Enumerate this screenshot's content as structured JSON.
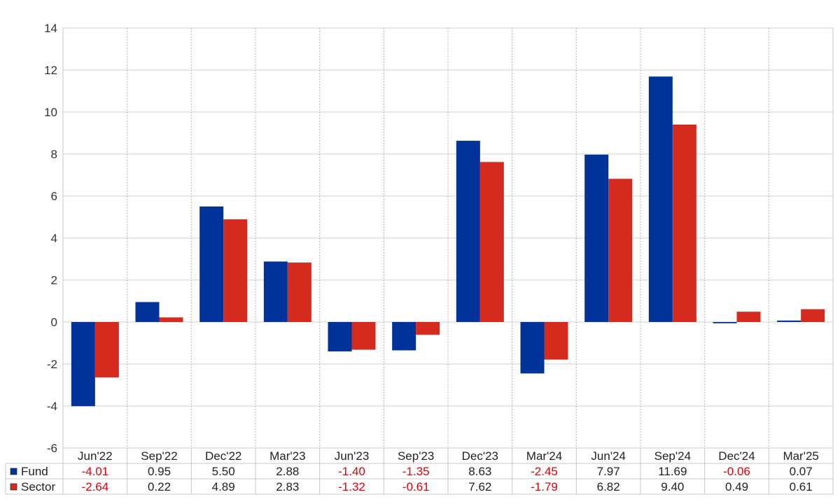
{
  "chart_data": {
    "type": "bar",
    "categories": [
      "Jun'22",
      "Sep'22",
      "Dec'22",
      "Mar'23",
      "Jun'23",
      "Sep'23",
      "Dec'23",
      "Mar'24",
      "Jun'24",
      "Sep'24",
      "Dec'24",
      "Mar'25"
    ],
    "series": [
      {
        "name": "Fund",
        "color": "#003399",
        "values": [
          -4.01,
          0.95,
          5.5,
          2.88,
          -1.4,
          -1.35,
          8.63,
          -2.45,
          7.97,
          11.69,
          -0.06,
          0.07
        ],
        "labels": [
          "-4.01",
          "0.95",
          "5.50",
          "2.88",
          "-1.40",
          "-1.35",
          "8.63",
          "-2.45",
          "7.97",
          "11.69",
          "-0.06",
          "0.07"
        ]
      },
      {
        "name": "Sector",
        "color": "#d52b1e",
        "values": [
          -2.64,
          0.22,
          4.89,
          2.83,
          -1.32,
          -0.61,
          7.62,
          -1.79,
          6.82,
          9.4,
          0.49,
          0.61
        ],
        "labels": [
          "-2.64",
          "0.22",
          "4.89",
          "2.83",
          "-1.32",
          "-0.61",
          "7.62",
          "-1.79",
          "6.82",
          "9.40",
          "0.49",
          "0.61"
        ]
      }
    ],
    "y_ticks": [
      -6,
      -4,
      -2,
      0,
      2,
      4,
      6,
      8,
      10,
      12,
      14
    ],
    "y_tick_labels": [
      "-6",
      "-4",
      "-2",
      "0",
      "2",
      "4",
      "6",
      "8",
      "10",
      "12",
      "14"
    ],
    "ylim": [
      -6,
      14
    ],
    "grid": true,
    "legend": "table-below",
    "negative_value_color": "#e8000b",
    "positive_value_color": "#222222"
  }
}
